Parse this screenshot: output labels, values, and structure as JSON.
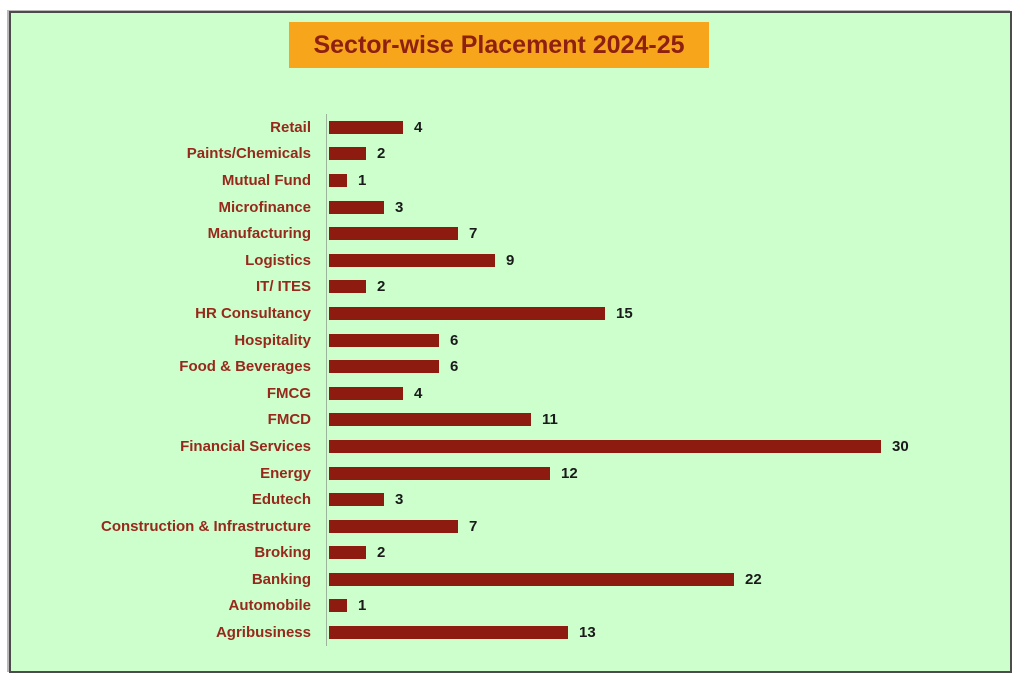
{
  "title": "Sector-wise Placement 2024-25",
  "colors": {
    "page_background": "#ffffff",
    "panel_background": "#CCFFCC",
    "panel_border": "#4C4C4C",
    "title_background": "#F7A61B",
    "title_text": "#8E2012",
    "bar": "#8E1B10",
    "category_label": "#97291C",
    "value_label": "#1A1A1A",
    "axis_line": "#9BB49B"
  },
  "chart_data": {
    "type": "bar",
    "orientation": "horizontal",
    "title": "Sector-wise Placement 2024-25",
    "categories": [
      "Retail",
      "Paints/Chemicals",
      "Mutual Fund",
      "Microfinance",
      "Manufacturing",
      "Logistics",
      "IT/ ITES",
      "HR Consultancy",
      "Hospitality",
      "Food & Beverages",
      "FMCG",
      "FMCD",
      "Financial Services",
      "Energy",
      "Edutech",
      "Construction & Infrastructure",
      "Broking",
      "Banking",
      "Automobile",
      "Agribusiness"
    ],
    "values": [
      4,
      2,
      1,
      3,
      7,
      9,
      2,
      15,
      6,
      6,
      4,
      11,
      30,
      12,
      3,
      7,
      2,
      22,
      1,
      13
    ],
    "xlabel": "",
    "ylabel": "",
    "xlim": [
      0,
      30
    ],
    "grid": false,
    "legend": false,
    "data_labels": true
  }
}
